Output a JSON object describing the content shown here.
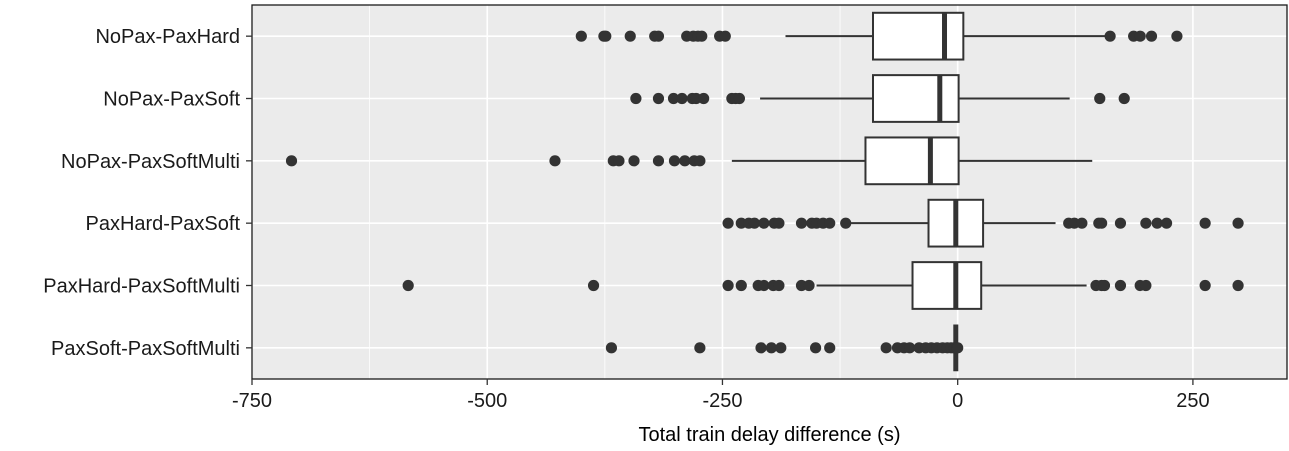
{
  "chart_data": {
    "type": "boxplot",
    "orientation": "horizontal",
    "title": "",
    "xlabel": "Total train delay difference (s)",
    "ylabel": "",
    "xlim": [
      -750,
      350
    ],
    "x_ticks": [
      -750,
      -500,
      -250,
      0,
      250
    ],
    "x_tick_labels": [
      "-750",
      "-500",
      "-250",
      "0",
      "250"
    ],
    "grid": true,
    "panel_color": "#ebebeb",
    "grid_color": "#ffffff",
    "box_fill": "#ffffff",
    "line_color": "#333333",
    "outlier_color": "#333333",
    "categories": [
      "NoPax-PaxHard",
      "NoPax-PaxSoft",
      "NoPax-PaxSoftMulti",
      "PaxHard-PaxSoft",
      "PaxHard-PaxSoftMulti",
      "PaxSoft-PaxSoftMulti"
    ],
    "boxes": [
      {
        "category": "NoPax-PaxHard",
        "whisker_low": -183,
        "q1": -90,
        "median": -14,
        "q3": 6,
        "whisker_high": 157,
        "outliers": [
          -400,
          -376,
          -374,
          -348,
          -322,
          -318,
          -288,
          -281,
          -276,
          -272,
          -253,
          -247,
          162,
          187,
          194,
          206,
          233
        ]
      },
      {
        "category": "NoPax-PaxSoft",
        "whisker_low": -210,
        "q1": -90,
        "median": -19,
        "q3": 1,
        "whisker_high": 119,
        "outliers": [
          -342,
          -318,
          -302,
          -293,
          -282,
          -278,
          -270,
          -240,
          -236,
          -232,
          151,
          177
        ]
      },
      {
        "category": "NoPax-PaxSoftMulti",
        "whisker_low": -240,
        "q1": -98,
        "median": -29,
        "q3": 1,
        "whisker_high": 143,
        "outliers": [
          -708,
          -428,
          -366,
          -360,
          -344,
          -318,
          -301,
          -290,
          -280,
          -274
        ]
      },
      {
        "category": "PaxHard-PaxSoft",
        "whisker_low": -115,
        "q1": -31,
        "median": -2,
        "q3": 27,
        "whisker_high": 104,
        "outliers": [
          -244,
          -230,
          -222,
          -216,
          -206,
          -195,
          -190,
          -166,
          -155,
          -150,
          -143,
          -136,
          -119,
          118,
          124,
          132,
          150,
          153,
          173,
          200,
          212,
          222,
          263,
          298
        ]
      },
      {
        "category": "PaxHard-PaxSoftMulti",
        "whisker_low": -150,
        "q1": -48,
        "median": -2,
        "q3": 25,
        "whisker_high": 137,
        "outliers": [
          -584,
          -387,
          -244,
          -230,
          -212,
          -206,
          -196,
          -190,
          -166,
          -158,
          147,
          153,
          156,
          173,
          194,
          200,
          263,
          298
        ]
      },
      {
        "category": "PaxSoft-PaxSoftMulti",
        "whisker_low": -2,
        "q1": -2,
        "median": -2,
        "q3": -2,
        "whisker_high": -2,
        "outliers": [
          -368,
          -274,
          -209,
          -198,
          -188,
          -151,
          -136,
          -76,
          -64,
          -57,
          -51,
          -41,
          -34,
          -28,
          -22,
          -16,
          -11,
          -7,
          -4,
          -3,
          -1,
          0
        ]
      }
    ]
  }
}
